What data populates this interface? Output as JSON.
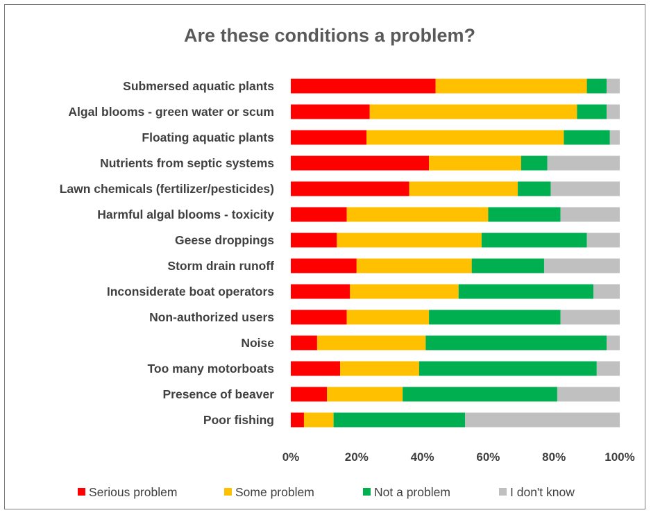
{
  "chart_data": {
    "type": "bar",
    "orientation": "horizontal",
    "stacked": "100%",
    "title": "Are these conditions a problem?",
    "xlabel": "",
    "ylabel": "",
    "xlim": [
      0,
      100
    ],
    "x_ticks": [
      "0%",
      "20%",
      "40%",
      "60%",
      "80%",
      "100%"
    ],
    "grid": false,
    "legend_position": "bottom",
    "categories": [
      "Submersed aquatic plants",
      "Algal blooms - green water or scum",
      "Floating aquatic plants",
      "Nutrients from septic systems",
      "Lawn chemicals (fertilizer/pesticides)",
      "Harmful algal blooms - toxicity",
      "Geese droppings",
      "Storm drain runoff",
      "Inconsiderate boat operators",
      "Non-authorized users",
      "Noise",
      "Too many motorboats",
      "Presence of beaver",
      "Poor fishing"
    ],
    "series": [
      {
        "name": "Serious problem",
        "color": "#ff0000",
        "values": [
          44,
          24,
          23,
          42,
          36,
          17,
          14,
          20,
          18,
          17,
          8,
          15,
          11,
          4
        ]
      },
      {
        "name": "Some problem",
        "color": "#ffc000",
        "values": [
          46,
          63,
          60,
          28,
          33,
          43,
          44,
          35,
          33,
          25,
          33,
          24,
          23,
          9
        ]
      },
      {
        "name": "Not a problem",
        "color": "#00b050",
        "values": [
          6,
          9,
          14,
          8,
          10,
          22,
          32,
          22,
          41,
          40,
          55,
          54,
          47,
          40
        ]
      },
      {
        "name": "I don't know",
        "color": "#c0c0c0",
        "values": [
          4,
          4,
          3,
          22,
          21,
          18,
          10,
          23,
          8,
          18,
          4,
          7,
          19,
          47
        ]
      }
    ]
  }
}
